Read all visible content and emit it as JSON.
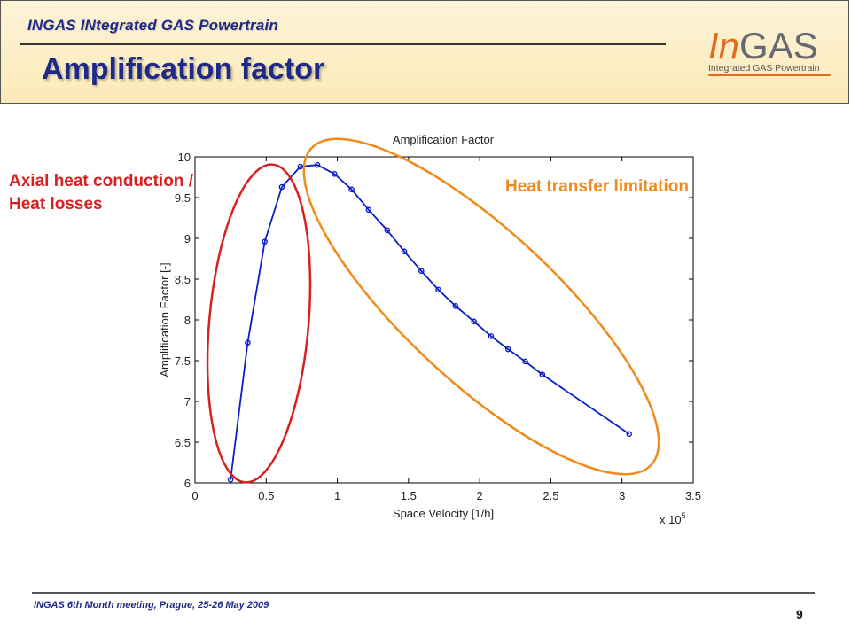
{
  "header": {
    "subtitle": "INGAS INtegrated GAS Powertrain",
    "title": "Amplification factor"
  },
  "logo": {
    "in": "In",
    "gas": "GAS",
    "tagline": "Integrated GAS Powertrain"
  },
  "annotations": {
    "left_line1": "Axial heat conduction /",
    "left_line2": "Heat losses",
    "right": "Heat transfer limitation"
  },
  "footer": {
    "text": "INGAS 6th Month meeting, Prague, 25-26 May 2009",
    "page": "9"
  },
  "colors": {
    "title": "#1f2a88",
    "series": "#0a1ec8",
    "left_ellipse": "#d92020",
    "right_ellipse": "#f08a19"
  },
  "chart_data": {
    "type": "line",
    "title": "Amplification Factor",
    "xlabel": "Space Velocity [1/h]",
    "ylabel": "Amplification Factor [-]",
    "x_multiplier": "x 10",
    "x_exponent": "5",
    "xlim": [
      0,
      3.5
    ],
    "ylim": [
      6,
      10
    ],
    "xticks": [
      0,
      0.5,
      1,
      1.5,
      2,
      2.5,
      3,
      3.5
    ],
    "xtick_labels": [
      "0",
      "0.5",
      "1",
      "1.5",
      "2",
      "2.5",
      "3",
      "3.5"
    ],
    "yticks": [
      6,
      6.5,
      7,
      7.5,
      8,
      8.5,
      9,
      9.5,
      10
    ],
    "ytick_labels": [
      "6",
      "6.5",
      "7",
      "7.5",
      "8",
      "8.5",
      "9",
      "9.5",
      "10"
    ],
    "grid": false,
    "series": [
      {
        "x": [
          0.25,
          0.37,
          0.49,
          0.61,
          0.74,
          0.86,
          0.98,
          1.1,
          1.22,
          1.35,
          1.47,
          1.59,
          1.71,
          1.83,
          1.96,
          2.08,
          2.2,
          2.32,
          2.44,
          3.05
        ],
        "y": [
          6.04,
          7.72,
          8.96,
          9.63,
          9.88,
          9.9,
          9.79,
          9.6,
          9.35,
          9.1,
          8.84,
          8.6,
          8.37,
          8.17,
          7.98,
          7.8,
          7.64,
          7.49,
          7.33,
          6.6
        ]
      }
    ]
  }
}
